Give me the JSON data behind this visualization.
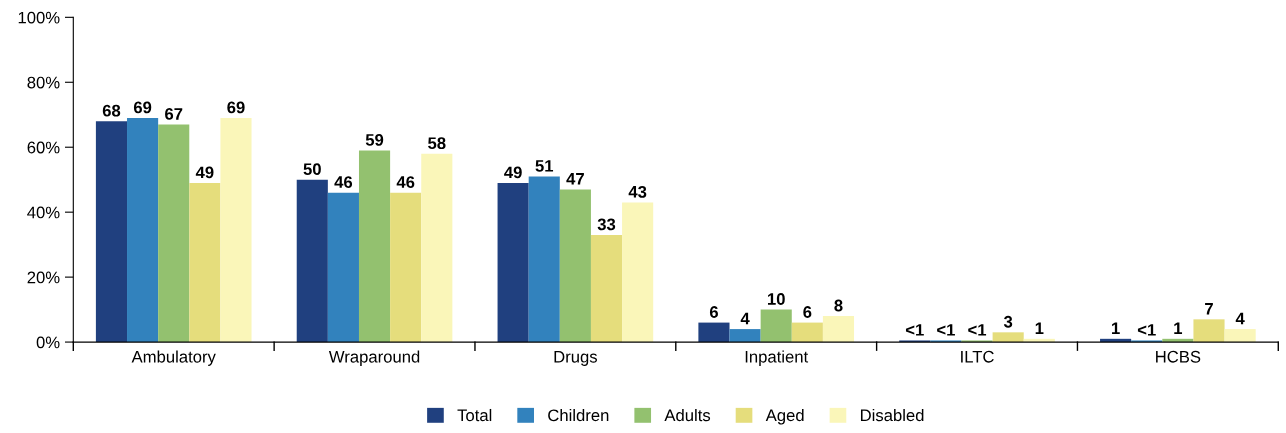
{
  "chart_data": {
    "type": "bar",
    "categories": [
      "Ambulatory",
      "Wraparound",
      "Drugs",
      "Inpatient",
      "ILTC",
      "HCBS"
    ],
    "series": [
      {
        "name": "Total",
        "color": "#20407f",
        "values": [
          68,
          50,
          49,
          6,
          0.5,
          1
        ],
        "value_labels": [
          "68",
          "50",
          "49",
          "6",
          "<1",
          "1"
        ]
      },
      {
        "name": "Children",
        "color": "#3282bd",
        "values": [
          69,
          46,
          51,
          4,
          0.5,
          0.5
        ],
        "value_labels": [
          "69",
          "46",
          "51",
          "4",
          "<1",
          "<1"
        ]
      },
      {
        "name": "Adults",
        "color": "#93c16f",
        "values": [
          67,
          59,
          47,
          10,
          0.5,
          1
        ],
        "value_labels": [
          "67",
          "59",
          "47",
          "10",
          "<1",
          "1"
        ]
      },
      {
        "name": "Aged",
        "color": "#e5dd7c",
        "values": [
          49,
          46,
          33,
          6,
          3,
          7
        ],
        "value_labels": [
          "49",
          "46",
          "33",
          "6",
          "3",
          "7"
        ]
      },
      {
        "name": "Disabled",
        "color": "#faf6b9",
        "values": [
          69,
          58,
          43,
          8,
          1,
          4
        ],
        "value_labels": [
          "69",
          "58",
          "43",
          "8",
          "1",
          "4"
        ]
      }
    ],
    "ylim": [
      0,
      100
    ],
    "yticks": [
      {
        "value": 0,
        "label": "0%"
      },
      {
        "value": 20,
        "label": "20%"
      },
      {
        "value": 40,
        "label": "40%"
      },
      {
        "value": 60,
        "label": "60%"
      },
      {
        "value": 80,
        "label": "80%"
      },
      {
        "value": 100,
        "label": "100%"
      }
    ],
    "grid": false,
    "legend": "bottom"
  }
}
